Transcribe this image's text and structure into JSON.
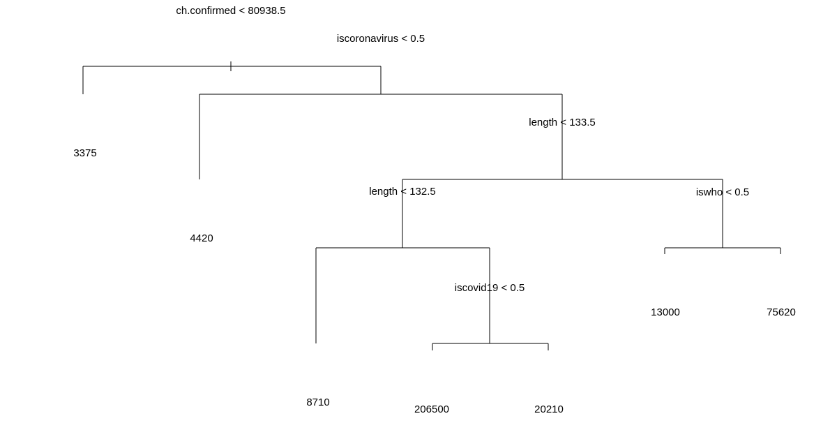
{
  "tree": {
    "splits": [
      {
        "id": "root",
        "label": "ch.confirmed < 80938.5"
      },
      {
        "id": "n2",
        "label": "iscoronavirus < 0.5"
      },
      {
        "id": "n3",
        "label": "length < 133.5"
      },
      {
        "id": "n4",
        "label": "length < 132.5"
      },
      {
        "id": "n5",
        "label": "iswho < 0.5"
      },
      {
        "id": "n6",
        "label": "iscovid19 < 0.5"
      }
    ],
    "leaves": [
      {
        "id": "leaf-3375",
        "value": "3375"
      },
      {
        "id": "leaf-4420",
        "value": "4420"
      },
      {
        "id": "leaf-8710",
        "value": "8710"
      },
      {
        "id": "leaf-206500",
        "value": "206500"
      },
      {
        "id": "leaf-20210",
        "value": "20210"
      },
      {
        "id": "leaf-13000",
        "value": "13000"
      },
      {
        "id": "leaf-75620",
        "value": "75620"
      }
    ]
  }
}
